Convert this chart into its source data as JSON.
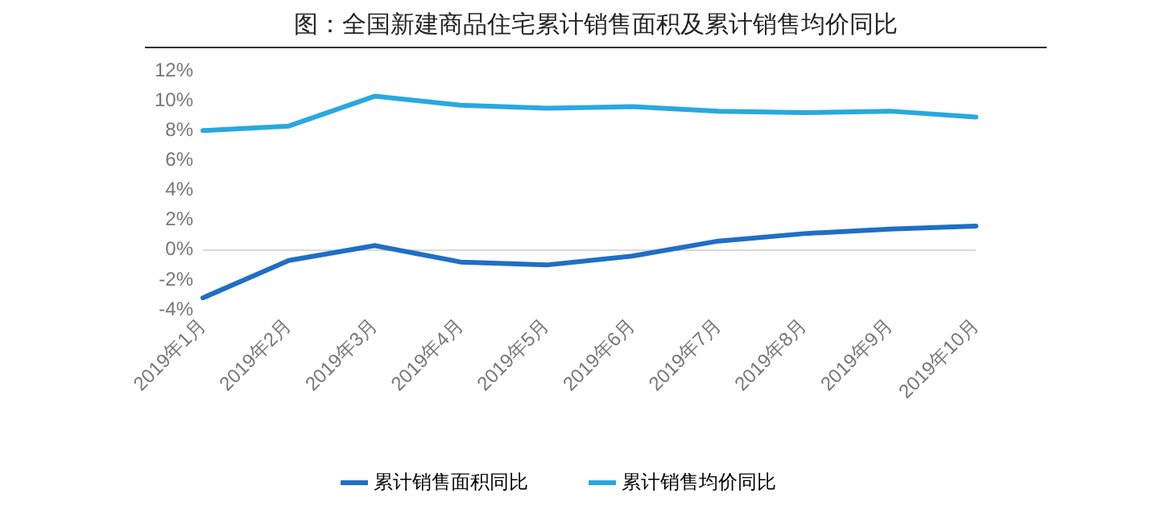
{
  "chart_data": {
    "type": "line",
    "title": "图：全国新建商品住宅累计销售面积及累计销售均价同比",
    "categories": [
      "2019年1月",
      "2019年2月",
      "2019年3月",
      "2019年4月",
      "2019年5月",
      "2019年6月",
      "2019年7月",
      "2019年8月",
      "2019年9月",
      "2019年10月"
    ],
    "series": [
      {
        "name": "累计销售面积同比",
        "color": "#1f6fc5",
        "values": [
          -3.2,
          -0.7,
          0.3,
          -0.8,
          -1.0,
          -0.4,
          0.6,
          1.1,
          1.4,
          1.6
        ]
      },
      {
        "name": "累计销售均价同比",
        "color": "#29a8e0",
        "values": [
          8.0,
          8.3,
          10.3,
          9.7,
          9.5,
          9.6,
          9.3,
          9.2,
          9.3,
          8.9
        ]
      }
    ],
    "ylim": [
      -4,
      12
    ],
    "yticks": [
      {
        "value": -4,
        "label": "-4%"
      },
      {
        "value": -2,
        "label": "-2%"
      },
      {
        "value": 0,
        "label": "0%"
      },
      {
        "value": 2,
        "label": "2%"
      },
      {
        "value": 4,
        "label": "4%"
      },
      {
        "value": 6,
        "label": "6%"
      },
      {
        "value": 8,
        "label": "8%"
      },
      {
        "value": 10,
        "label": "10%"
      },
      {
        "value": 12,
        "label": "12%"
      }
    ],
    "ref_lines": [
      {
        "axis": "y",
        "value": 0,
        "color": "#d9d9d9"
      }
    ],
    "grid": false,
    "legend": "bottom",
    "marker": "none",
    "line_style": "solid"
  }
}
